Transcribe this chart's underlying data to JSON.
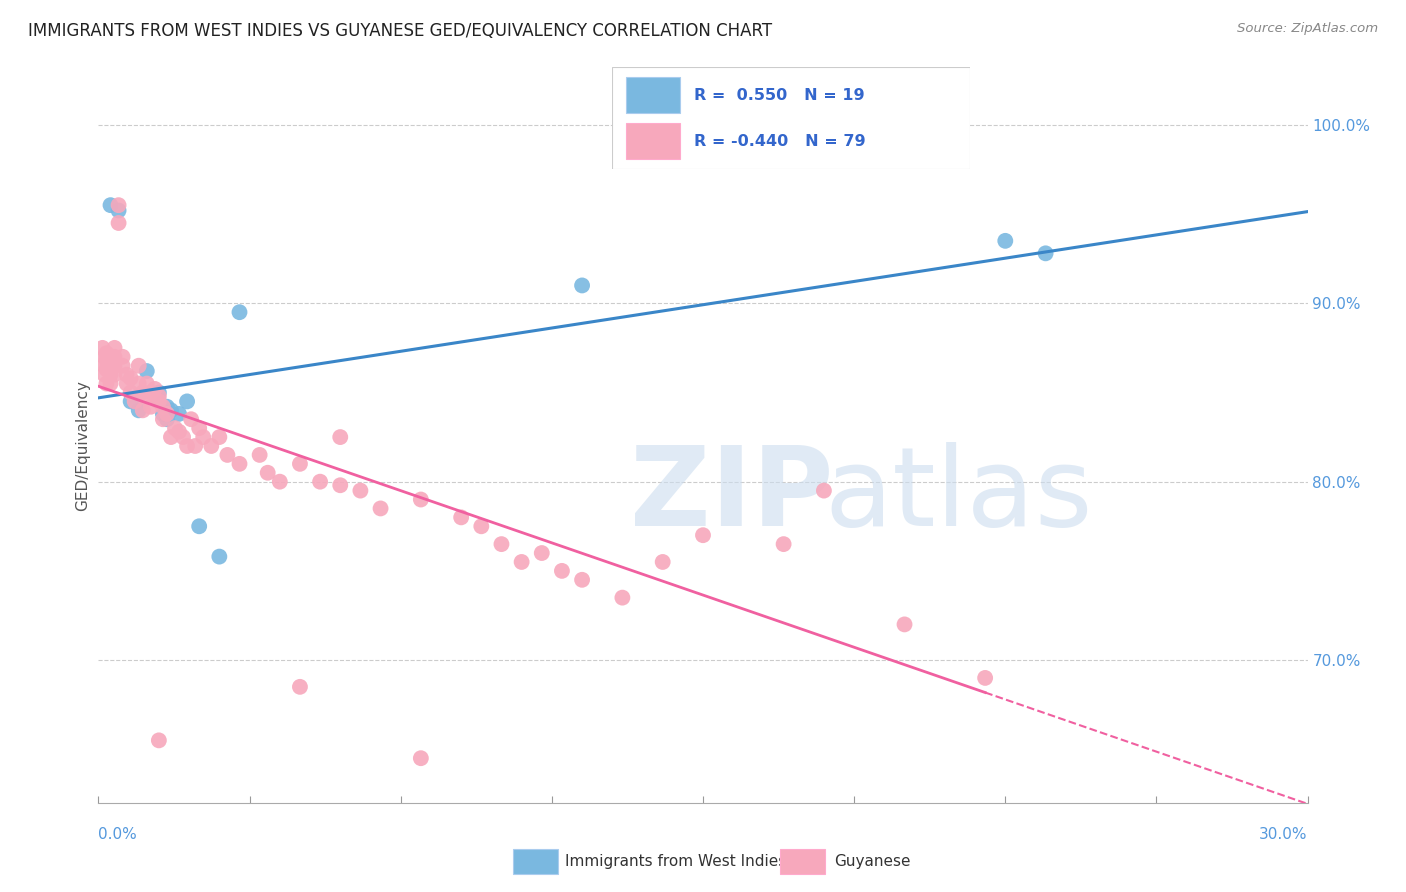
{
  "title": "IMMIGRANTS FROM WEST INDIES VS GUYANESE GED/EQUIVALENCY CORRELATION CHART",
  "source": "Source: ZipAtlas.com",
  "ylabel": "GED/Equivalency",
  "r_blue": 0.55,
  "n_blue": 19,
  "r_pink": -0.44,
  "n_pink": 79,
  "legend_label_blue": "Immigrants from West Indies",
  "legend_label_pink": "Guyanese",
  "xmin": 0.0,
  "xmax": 30.0,
  "ymin": 62.0,
  "ymax": 102.0,
  "right_yticks": [
    70.0,
    80.0,
    90.0,
    100.0
  ],
  "right_ytick_labels": [
    "70.0%",
    "80.0%",
    "90.0%",
    "100.0%"
  ],
  "blue_color": "#7ab8e0",
  "pink_color": "#f7a8bc",
  "trend_blue_color": "#3a86c8",
  "trend_pink_color": "#f060a0",
  "blue_scatter": [
    [
      0.3,
      95.5
    ],
    [
      0.5,
      95.2
    ],
    [
      0.8,
      84.5
    ],
    [
      1.0,
      84.0
    ],
    [
      1.2,
      86.2
    ],
    [
      1.5,
      85.0
    ],
    [
      1.5,
      84.5
    ],
    [
      1.6,
      83.8
    ],
    [
      1.7,
      84.2
    ],
    [
      1.7,
      83.5
    ],
    [
      1.8,
      84.0
    ],
    [
      2.0,
      83.8
    ],
    [
      2.2,
      84.5
    ],
    [
      2.5,
      77.5
    ],
    [
      3.0,
      75.8
    ],
    [
      3.5,
      89.5
    ],
    [
      12.0,
      91.0
    ],
    [
      22.5,
      93.5
    ],
    [
      23.5,
      92.8
    ]
  ],
  "pink_scatter": [
    [
      0.1,
      87.5
    ],
    [
      0.15,
      87.0
    ],
    [
      0.15,
      86.5
    ],
    [
      0.15,
      86.0
    ],
    [
      0.2,
      87.2
    ],
    [
      0.2,
      86.8
    ],
    [
      0.2,
      86.3
    ],
    [
      0.2,
      85.5
    ],
    [
      0.3,
      87.0
    ],
    [
      0.3,
      86.5
    ],
    [
      0.3,
      86.0
    ],
    [
      0.3,
      85.5
    ],
    [
      0.4,
      87.5
    ],
    [
      0.4,
      87.0
    ],
    [
      0.4,
      86.5
    ],
    [
      0.4,
      86.0
    ],
    [
      0.5,
      95.5
    ],
    [
      0.5,
      94.5
    ],
    [
      0.6,
      87.0
    ],
    [
      0.6,
      86.5
    ],
    [
      0.7,
      86.0
    ],
    [
      0.7,
      85.5
    ],
    [
      0.8,
      85.8
    ],
    [
      0.8,
      85.0
    ],
    [
      0.9,
      84.5
    ],
    [
      1.0,
      86.5
    ],
    [
      1.0,
      85.5
    ],
    [
      1.1,
      85.0
    ],
    [
      1.1,
      84.0
    ],
    [
      1.2,
      85.5
    ],
    [
      1.2,
      84.8
    ],
    [
      1.3,
      85.0
    ],
    [
      1.3,
      84.2
    ],
    [
      1.4,
      85.2
    ],
    [
      1.5,
      84.8
    ],
    [
      1.5,
      84.5
    ],
    [
      1.6,
      84.2
    ],
    [
      1.6,
      83.5
    ],
    [
      1.7,
      83.8
    ],
    [
      1.8,
      82.5
    ],
    [
      1.9,
      83.0
    ],
    [
      2.0,
      82.8
    ],
    [
      2.1,
      82.5
    ],
    [
      2.2,
      82.0
    ],
    [
      2.3,
      83.5
    ],
    [
      2.4,
      82.0
    ],
    [
      2.5,
      83.0
    ],
    [
      2.6,
      82.5
    ],
    [
      2.8,
      82.0
    ],
    [
      3.0,
      82.5
    ],
    [
      3.2,
      81.5
    ],
    [
      3.5,
      81.0
    ],
    [
      4.0,
      81.5
    ],
    [
      4.2,
      80.5
    ],
    [
      4.5,
      80.0
    ],
    [
      5.0,
      81.0
    ],
    [
      5.5,
      80.0
    ],
    [
      6.0,
      82.5
    ],
    [
      6.0,
      79.8
    ],
    [
      6.5,
      79.5
    ],
    [
      7.0,
      78.5
    ],
    [
      8.0,
      79.0
    ],
    [
      9.0,
      78.0
    ],
    [
      9.5,
      77.5
    ],
    [
      10.0,
      76.5
    ],
    [
      10.5,
      75.5
    ],
    [
      11.0,
      76.0
    ],
    [
      11.5,
      75.0
    ],
    [
      12.0,
      74.5
    ],
    [
      13.0,
      73.5
    ],
    [
      14.0,
      75.5
    ],
    [
      15.0,
      77.0
    ],
    [
      17.0,
      76.5
    ],
    [
      18.0,
      79.5
    ],
    [
      20.0,
      72.0
    ],
    [
      22.0,
      69.0
    ],
    [
      5.0,
      68.5
    ],
    [
      8.0,
      64.5
    ],
    [
      1.5,
      65.5
    ]
  ]
}
